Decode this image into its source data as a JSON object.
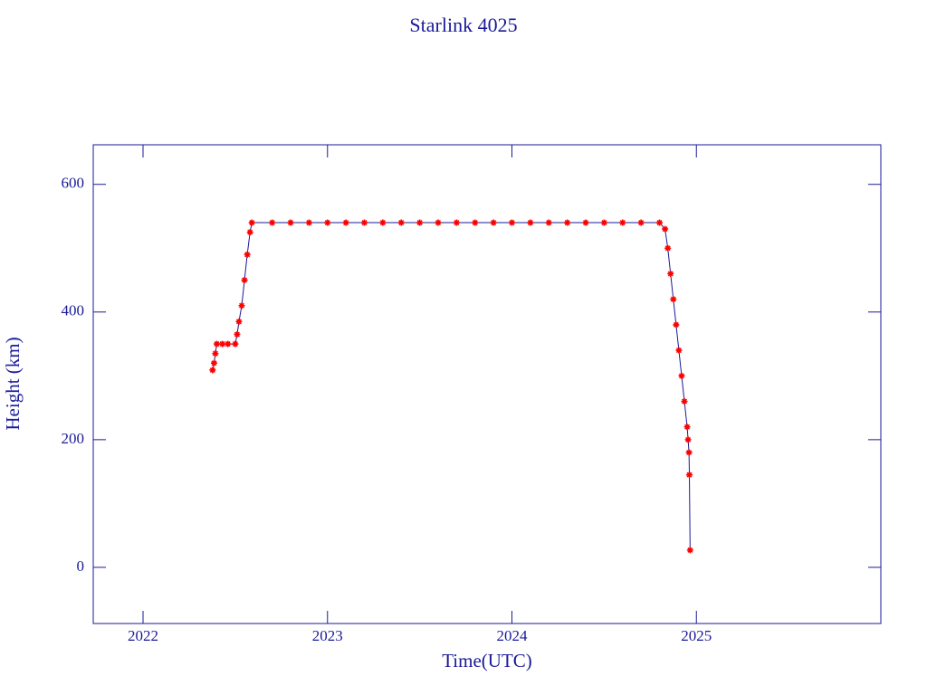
{
  "chart_data": {
    "type": "scatter",
    "title": "Starlink 4025",
    "x_label": "Time(UTC)",
    "y_label": "Height (km)",
    "x": [
      2022.377,
      2022.385,
      2022.392,
      2022.4,
      2022.43,
      2022.46,
      2022.5,
      2022.51,
      2022.52,
      2022.535,
      2022.55,
      2022.565,
      2022.58,
      2022.59,
      2022.7,
      2022.8,
      2022.9,
      2023.0,
      2023.1,
      2023.2,
      2023.3,
      2023.4,
      2023.5,
      2023.6,
      2023.7,
      2023.8,
      2023.9,
      2024.0,
      2024.1,
      2024.2,
      2024.3,
      2024.4,
      2024.5,
      2024.6,
      2024.7,
      2024.8,
      2024.83,
      2024.845,
      2024.86,
      2024.875,
      2024.89,
      2024.905,
      2024.92,
      2024.935,
      2024.95,
      2024.955,
      2024.96,
      2024.962,
      2024.966
    ],
    "series": [
      {
        "color": "#ff0000",
        "line_color": "#1a1a9a",
        "values": [
          309,
          320,
          335,
          350,
          350,
          350,
          350,
          365,
          385,
          410,
          450,
          490,
          525,
          540,
          540,
          540,
          540,
          540,
          540,
          540,
          540,
          540,
          540,
          540,
          540,
          540,
          540,
          540,
          540,
          540,
          540,
          540,
          540,
          540,
          540,
          540,
          530,
          500,
          460,
          420,
          380,
          340,
          300,
          260,
          220,
          200,
          180,
          145,
          27
        ]
      }
    ],
    "xlim": [
      2021.73,
      2026.0
    ],
    "ylim": [
      -88,
      662
    ],
    "xticks": [
      2022,
      2023,
      2024,
      2025
    ],
    "yticks": [
      0,
      200,
      400,
      600
    ]
  }
}
